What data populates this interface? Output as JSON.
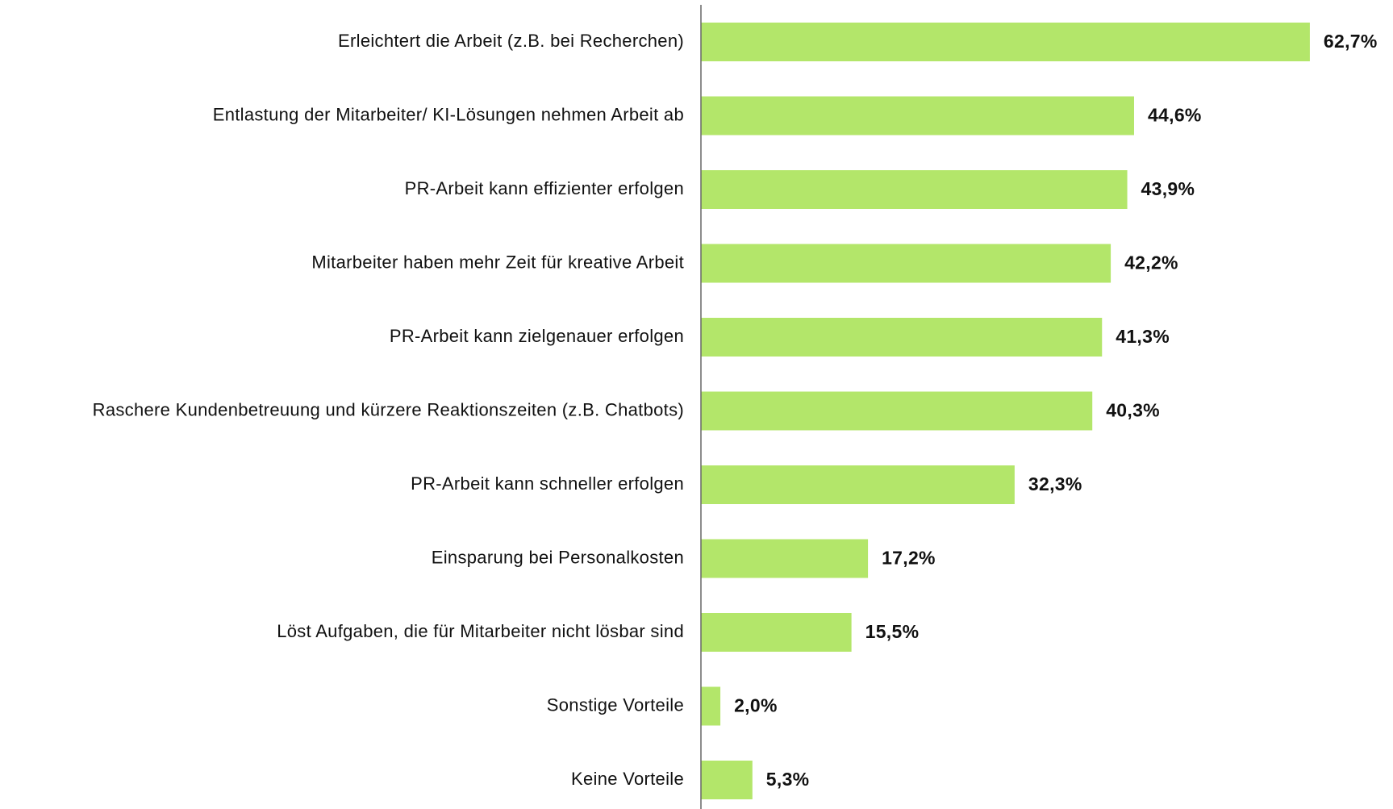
{
  "chart_data": {
    "type": "bar",
    "orientation": "horizontal",
    "color": "#b3e66a",
    "categories": [
      "Erleichtert die Arbeit (z.B. bei Recherchen)",
      "Entlastung der Mitarbeiter/ KI-Lösungen nehmen Arbeit ab",
      "PR-Arbeit kann effizienter erfolgen",
      "Mitarbeiter haben mehr Zeit für kreative Arbeit",
      "PR-Arbeit kann zielgenauer erfolgen",
      "Raschere Kundenbetreuung und kürzere Reaktionszeiten (z.B. Chatbots)",
      "PR-Arbeit kann schneller erfolgen",
      "Einsparung bei Personalkosten",
      "Löst Aufgaben, die für Mitarbeiter nicht lösbar sind",
      "Sonstige Vorteile",
      "Keine Vorteile"
    ],
    "values": [
      62.7,
      44.6,
      43.9,
      42.2,
      41.3,
      40.3,
      32.3,
      17.2,
      15.5,
      2.0,
      5.3
    ],
    "value_labels": [
      "62,7%",
      "44,6%",
      "43,9%",
      "42,2%",
      "41,3%",
      "40,3%",
      "32,3%",
      "17,2%",
      "15,5%",
      "2,0%",
      "5,3%"
    ]
  }
}
